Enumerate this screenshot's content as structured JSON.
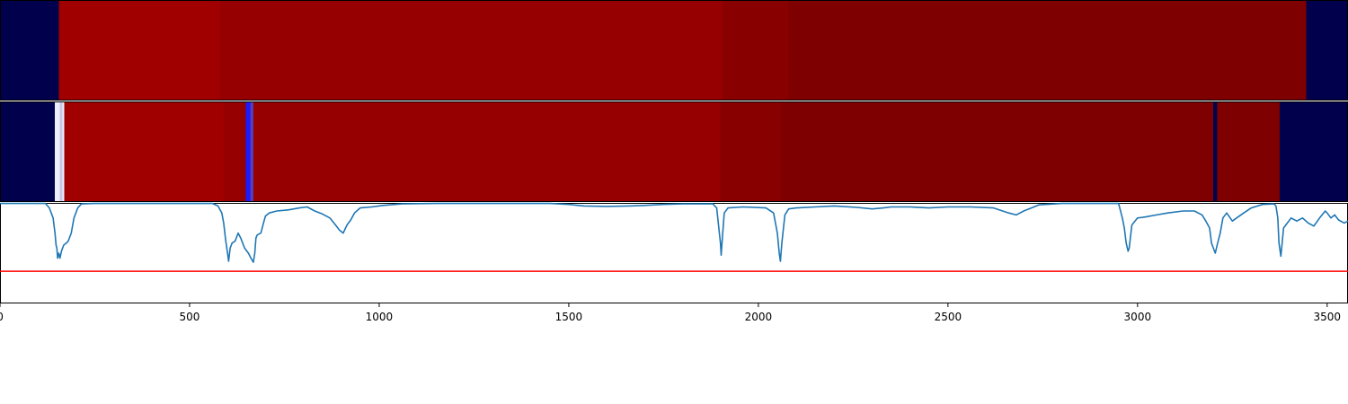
{
  "chart_data": {
    "type": "heatmap",
    "title": "",
    "xlabel": "",
    "ylabel": "",
    "xlim": [
      0,
      3555
    ],
    "x_ticks": [
      {
        "value": 0,
        "label": "0"
      },
      {
        "value": 500,
        "label": "500"
      },
      {
        "value": 1000,
        "label": "1000"
      },
      {
        "value": 1500,
        "label": "1500"
      },
      {
        "value": 2000,
        "label": "2000"
      },
      {
        "value": 2500,
        "label": "2500"
      },
      {
        "value": 3000,
        "label": "3000"
      },
      {
        "value": 3500,
        "label": "3500"
      }
    ],
    "rows": [
      {
        "segments": [
          {
            "start": 0,
            "end": 155,
            "color": "#00004c"
          },
          {
            "start": 155,
            "end": 580,
            "color": "#a00000"
          },
          {
            "start": 580,
            "end": 1905,
            "color": "#960000"
          },
          {
            "start": 1905,
            "end": 2080,
            "color": "#880000"
          },
          {
            "start": 2080,
            "end": 3445,
            "color": "#7f0000"
          },
          {
            "start": 3445,
            "end": 3555,
            "color": "#00004c"
          }
        ]
      },
      {
        "segments": [
          {
            "start": 0,
            "end": 145,
            "color": "#00004c"
          },
          {
            "start": 145,
            "end": 158,
            "color": "#eeeeff"
          },
          {
            "start": 158,
            "end": 165,
            "color": "#c8c8e6"
          },
          {
            "start": 165,
            "end": 170,
            "color": "#eeeeff"
          },
          {
            "start": 170,
            "end": 590,
            "color": "#a00000"
          },
          {
            "start": 590,
            "end": 648,
            "color": "#960000"
          },
          {
            "start": 648,
            "end": 660,
            "color": "#1a1aff"
          },
          {
            "start": 660,
            "end": 668,
            "color": "#5a3cb4"
          },
          {
            "start": 668,
            "end": 1900,
            "color": "#960000"
          },
          {
            "start": 1900,
            "end": 2060,
            "color": "#880000"
          },
          {
            "start": 2060,
            "end": 3200,
            "color": "#7f0000"
          },
          {
            "start": 3200,
            "end": 3210,
            "color": "#00004c"
          },
          {
            "start": 3210,
            "end": 3375,
            "color": "#7f0000"
          },
          {
            "start": 3375,
            "end": 3555,
            "color": "#00004c"
          }
        ]
      }
    ],
    "line": {
      "color": "#1f77b4",
      "ylim": [
        0,
        1
      ],
      "points": [
        [
          0,
          0.995
        ],
        [
          120,
          0.995
        ],
        [
          130,
          0.95
        ],
        [
          140,
          0.85
        ],
        [
          145,
          0.7
        ],
        [
          148,
          0.58
        ],
        [
          150,
          0.55
        ],
        [
          152,
          0.45
        ],
        [
          155,
          0.5
        ],
        [
          158,
          0.45
        ],
        [
          162,
          0.52
        ],
        [
          168,
          0.58
        ],
        [
          175,
          0.6
        ],
        [
          180,
          0.62
        ],
        [
          188,
          0.7
        ],
        [
          195,
          0.85
        ],
        [
          205,
          0.95
        ],
        [
          215,
          0.99
        ],
        [
          250,
          0.995
        ],
        [
          560,
          0.995
        ],
        [
          575,
          0.97
        ],
        [
          585,
          0.9
        ],
        [
          590,
          0.8
        ],
        [
          595,
          0.63
        ],
        [
          600,
          0.5
        ],
        [
          603,
          0.42
        ],
        [
          607,
          0.55
        ],
        [
          612,
          0.6
        ],
        [
          620,
          0.62
        ],
        [
          628,
          0.7
        ],
        [
          635,
          0.65
        ],
        [
          645,
          0.55
        ],
        [
          655,
          0.5
        ],
        [
          662,
          0.45
        ],
        [
          668,
          0.41
        ],
        [
          672,
          0.5
        ],
        [
          675,
          0.65
        ],
        [
          678,
          0.68
        ],
        [
          688,
          0.7
        ],
        [
          695,
          0.8
        ],
        [
          700,
          0.87
        ],
        [
          710,
          0.9
        ],
        [
          730,
          0.92
        ],
        [
          760,
          0.93
        ],
        [
          790,
          0.95
        ],
        [
          810,
          0.96
        ],
        [
          830,
          0.92
        ],
        [
          850,
          0.89
        ],
        [
          870,
          0.85
        ],
        [
          885,
          0.78
        ],
        [
          895,
          0.73
        ],
        [
          905,
          0.7
        ],
        [
          915,
          0.78
        ],
        [
          925,
          0.83
        ],
        [
          935,
          0.9
        ],
        [
          950,
          0.95
        ],
        [
          980,
          0.96
        ],
        [
          1010,
          0.975
        ],
        [
          1060,
          0.99
        ],
        [
          1150,
          0.995
        ],
        [
          1450,
          0.995
        ],
        [
          1500,
          0.985
        ],
        [
          1540,
          0.97
        ],
        [
          1600,
          0.965
        ],
        [
          1660,
          0.97
        ],
        [
          1700,
          0.975
        ],
        [
          1750,
          0.985
        ],
        [
          1800,
          0.99
        ],
        [
          1880,
          0.99
        ],
        [
          1890,
          0.95
        ],
        [
          1900,
          0.6
        ],
        [
          1902,
          0.48
        ],
        [
          1904,
          0.6
        ],
        [
          1910,
          0.9
        ],
        [
          1920,
          0.95
        ],
        [
          1960,
          0.96
        ],
        [
          2020,
          0.95
        ],
        [
          2040,
          0.9
        ],
        [
          2050,
          0.7
        ],
        [
          2055,
          0.5
        ],
        [
          2058,
          0.42
        ],
        [
          2062,
          0.6
        ],
        [
          2070,
          0.88
        ],
        [
          2080,
          0.94
        ],
        [
          2100,
          0.95
        ],
        [
          2150,
          0.96
        ],
        [
          2200,
          0.97
        ],
        [
          2260,
          0.955
        ],
        [
          2300,
          0.94
        ],
        [
          2330,
          0.95
        ],
        [
          2350,
          0.96
        ],
        [
          2400,
          0.96
        ],
        [
          2450,
          0.95
        ],
        [
          2500,
          0.96
        ],
        [
          2560,
          0.96
        ],
        [
          2620,
          0.95
        ],
        [
          2660,
          0.9
        ],
        [
          2680,
          0.88
        ],
        [
          2700,
          0.92
        ],
        [
          2740,
          0.98
        ],
        [
          2800,
          0.995
        ],
        [
          2950,
          0.995
        ],
        [
          2960,
          0.85
        ],
        [
          2965,
          0.75
        ],
        [
          2970,
          0.6
        ],
        [
          2975,
          0.52
        ],
        [
          2978,
          0.55
        ],
        [
          2985,
          0.78
        ],
        [
          3000,
          0.85
        ],
        [
          3020,
          0.86
        ],
        [
          3050,
          0.88
        ],
        [
          3080,
          0.9
        ],
        [
          3120,
          0.92
        ],
        [
          3150,
          0.92
        ],
        [
          3170,
          0.88
        ],
        [
          3180,
          0.82
        ],
        [
          3190,
          0.75
        ],
        [
          3195,
          0.6
        ],
        [
          3200,
          0.55
        ],
        [
          3205,
          0.5
        ],
        [
          3210,
          0.58
        ],
        [
          3218,
          0.7
        ],
        [
          3225,
          0.85
        ],
        [
          3235,
          0.9
        ],
        [
          3250,
          0.82
        ],
        [
          3265,
          0.86
        ],
        [
          3280,
          0.9
        ],
        [
          3300,
          0.95
        ],
        [
          3330,
          0.985
        ],
        [
          3360,
          0.99
        ],
        [
          3365,
          0.97
        ],
        [
          3370,
          0.85
        ],
        [
          3373,
          0.6
        ],
        [
          3378,
          0.47
        ],
        [
          3385,
          0.75
        ],
        [
          3395,
          0.8
        ],
        [
          3405,
          0.85
        ],
        [
          3420,
          0.82
        ],
        [
          3435,
          0.85
        ],
        [
          3450,
          0.8
        ],
        [
          3465,
          0.77
        ],
        [
          3480,
          0.85
        ],
        [
          3495,
          0.92
        ],
        [
          3500,
          0.9
        ],
        [
          3510,
          0.85
        ],
        [
          3520,
          0.88
        ],
        [
          3530,
          0.83
        ],
        [
          3545,
          0.8
        ],
        [
          3555,
          0.82
        ]
      ]
    },
    "threshold": {
      "value": 0.32,
      "color": "#ff0000"
    }
  }
}
